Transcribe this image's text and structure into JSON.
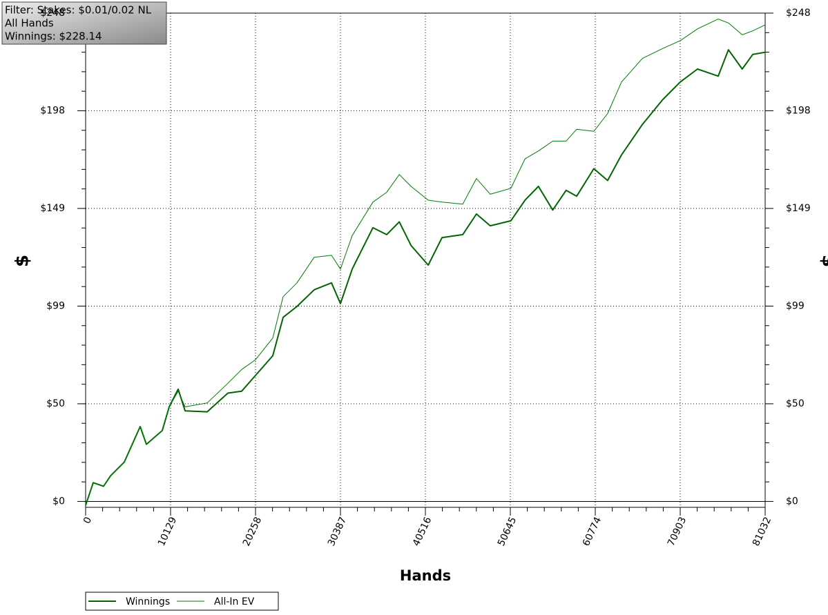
{
  "chart_data": {
    "type": "line",
    "annotations": [
      "Filter: Stakes: $0.01/0.02 NL",
      "All Hands",
      "Winnings: $228.14"
    ],
    "xlabel": "Hands",
    "ylabel": "$",
    "x": [
      0,
      906,
      2141,
      2965,
      4612,
      6506,
      7247,
      9141,
      9965,
      11035,
      11859,
      14494,
      16965,
      18611,
      20258,
      22317,
      23552,
      25200,
      27258,
      29317,
      30387,
      31788,
      34258,
      35900,
      37400,
      38800,
      40850,
      42500,
      44970,
      46600,
      48250,
      50700,
      52400,
      54000,
      55700,
      57300,
      58550,
      60600,
      62250,
      63900,
      66400,
      68800,
      70900,
      72960,
      75430,
      76650,
      78300,
      79550,
      81032
    ],
    "series": [
      {
        "name": "Winnings",
        "color": "#006400",
        "width": 2,
        "values": [
          -2,
          9.5,
          7.7,
          13,
          20,
          38,
          29,
          36,
          48,
          57,
          46,
          45.5,
          55,
          56,
          64,
          74,
          93.5,
          99,
          107.5,
          111,
          100.5,
          118,
          139,
          135.5,
          142,
          130,
          120,
          134,
          135.5,
          146,
          140,
          142.5,
          153,
          160,
          148,
          158,
          155,
          169,
          163,
          176,
          191.5,
          204,
          213,
          219.6,
          216,
          229.4,
          219.6,
          227,
          228.14
        ]
      },
      {
        "name": "All-In EV",
        "color": "#007a00",
        "width": 1,
        "values": [
          -2,
          9.5,
          7.7,
          13,
          20,
          38,
          29,
          36,
          48,
          56,
          48,
          50,
          60,
          67,
          72,
          83,
          104,
          111,
          124,
          125,
          118,
          135,
          152,
          157,
          166,
          160,
          153,
          152,
          151,
          164,
          156,
          159,
          174,
          178,
          183,
          183,
          189,
          188,
          197,
          213,
          225,
          230,
          234,
          240,
          245,
          243,
          237,
          239,
          242
        ]
      }
    ],
    "xlim": [
      0,
      81032
    ],
    "xticks": [
      0,
      10129,
      20258,
      30387,
      40516,
      50645,
      60774,
      70903,
      81032
    ],
    "ylim": [
      -3,
      248
    ],
    "yticks": [
      {
        "value": 0,
        "label": "$0"
      },
      {
        "value": 49.6,
        "label": "$50"
      },
      {
        "value": 99.2,
        "label": "$99"
      },
      {
        "value": 148.8,
        "label": "$149"
      },
      {
        "value": 198.4,
        "label": "$198"
      },
      {
        "value": 248,
        "label": "$248"
      }
    ],
    "grid": true,
    "legend": "bottom-left"
  }
}
